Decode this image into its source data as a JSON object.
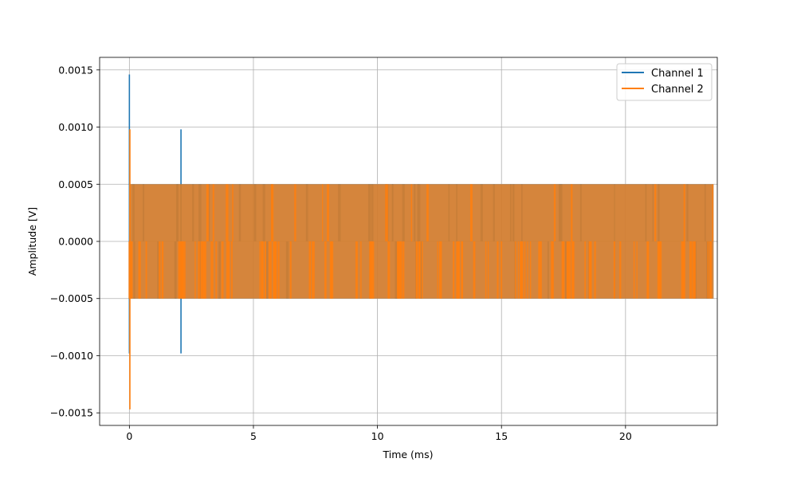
{
  "chart_data": {
    "type": "line",
    "xlabel": "Time (ms)",
    "ylabel": "Amplitude [V]",
    "xlim": [
      -1.2,
      23.7
    ],
    "ylim": [
      -0.00161,
      0.00161
    ],
    "x_ticks": [
      0,
      5,
      10,
      15,
      20
    ],
    "x_tick_labels": [
      "0",
      "5",
      "10",
      "15",
      "20"
    ],
    "y_ticks": [
      -0.0015,
      -0.001,
      -0.0005,
      0.0,
      0.0005,
      0.001,
      0.0015
    ],
    "y_tick_labels": [
      "−0.0015",
      "−0.0010",
      "−0.0005",
      "0.0000",
      "0.0005",
      "0.0010",
      "0.0015"
    ],
    "grid": true,
    "legend_position": "top-right",
    "series": [
      {
        "name": "Channel 1",
        "color": "#1f77b4",
        "x_range": [
          0,
          23.55
        ],
        "levels": [
          -0.0005,
          0.0005
        ],
        "spikes": [
          {
            "x": 0.0,
            "ymin": -0.00098,
            "ymax": 0.00146
          },
          {
            "x": 2.08,
            "ymin": -0.00098,
            "ymax": 0.00098
          }
        ]
      },
      {
        "name": "Channel 2",
        "color": "#ff7f0e",
        "x_range": [
          0,
          23.55
        ],
        "levels": [
          -0.0005,
          0.0005
        ],
        "spikes": [
          {
            "x": 0.02,
            "ymin": -0.00147,
            "ymax": 0.00098
          }
        ]
      }
    ]
  }
}
